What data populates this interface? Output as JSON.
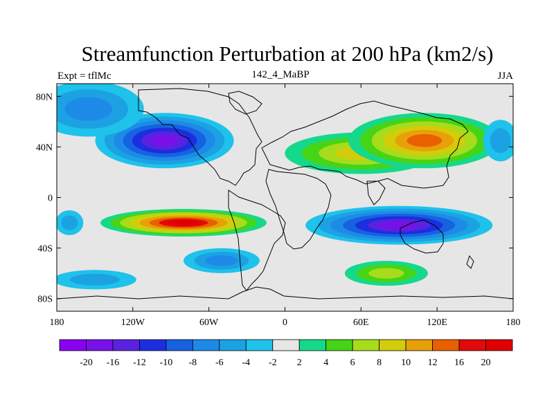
{
  "title": "Streamfunction Perturbation at 200 hPa (km2/s)",
  "left_label": "Expt = tflMc",
  "center_label": "142_4_MaBP",
  "right_label": "JJA",
  "axes": {
    "x_ticks": [
      "180",
      "120W",
      "60W",
      "0",
      "60E",
      "120E",
      "180"
    ],
    "y_ticks": [
      "80N",
      "40N",
      "0",
      "40S",
      "80S"
    ]
  },
  "colorbar": {
    "labels": [
      "-20",
      "-16",
      "-12",
      "-10",
      "-8",
      "-6",
      "-4",
      "-2",
      "2",
      "4",
      "6",
      "8",
      "10",
      "12",
      "16",
      "20"
    ],
    "colors": [
      "#8a00f0",
      "#7a10e8",
      "#5a22e0",
      "#1c2ee0",
      "#1662e0",
      "#1e8ae8",
      "#1ca2e2",
      "#1ec2ea",
      "#e6e6e6",
      "#16d88a",
      "#46d416",
      "#a6dc1c",
      "#d2cc0a",
      "#e8a008",
      "#e86000",
      "#e00a0a",
      "#e00000"
    ]
  },
  "chart_data": {
    "type": "heatmap",
    "variable": "Streamfunction Perturbation at 200 hPa (km2/s)",
    "lon_range": [
      -180,
      180
    ],
    "lat_range": [
      -90,
      90
    ],
    "levels": [
      -20,
      -16,
      -12,
      -10,
      -8,
      -6,
      -4,
      -2,
      2,
      4,
      6,
      8,
      10,
      12,
      16,
      20
    ],
    "features": [
      {
        "lon": -95,
        "lat": 45,
        "value": -16
      },
      {
        "lon": -155,
        "lat": 70,
        "value": -7
      },
      {
        "lon": 60,
        "lat": 35,
        "value": 9
      },
      {
        "lon": 110,
        "lat": 45,
        "value": 13
      },
      {
        "lon": -80,
        "lat": -20,
        "value": 20
      },
      {
        "lon": 90,
        "lat": -22,
        "value": -18
      },
      {
        "lon": -50,
        "lat": -50,
        "value": -6
      },
      {
        "lon": 80,
        "lat": -60,
        "value": 7
      },
      {
        "lon": 170,
        "lat": 45,
        "value": -5
      },
      {
        "lon": -170,
        "lat": -20,
        "value": -4
      },
      {
        "lon": -150,
        "lat": -65,
        "value": -5
      }
    ]
  }
}
